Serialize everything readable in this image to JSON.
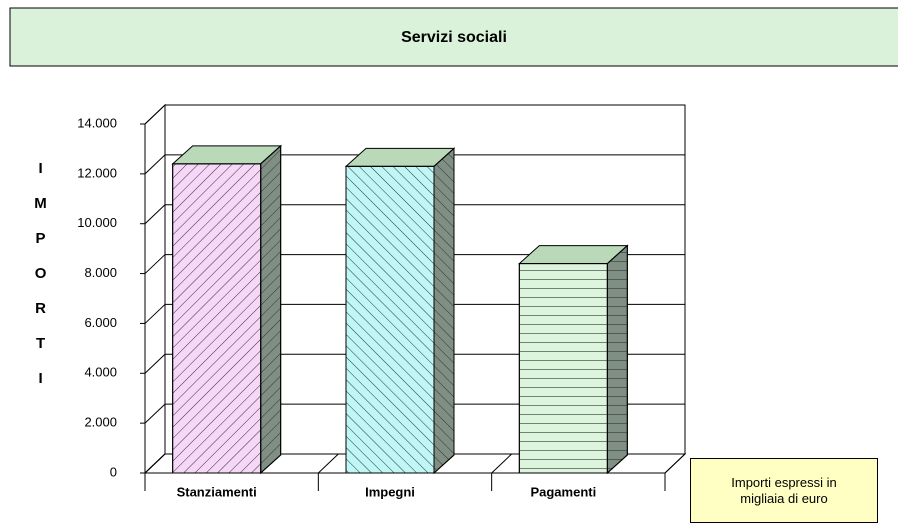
{
  "chart_data": {
    "type": "bar3d",
    "title": "Servizi sociali",
    "y_label": "IMPORTI",
    "categories": [
      "Stanziamenti",
      "Impegni",
      "Pagamenti"
    ],
    "values": [
      12400,
      12300,
      8400
    ],
    "colors": [
      "#f7d7f7",
      "#bff7f7",
      "#dcf5dc"
    ],
    "ylim": [
      0,
      14000
    ],
    "yticks": [
      0,
      {
        "value": 2000,
        "label": "2.000"
      },
      {
        "value": 4000,
        "label": "4.000"
      },
      {
        "value": 6000,
        "label": "6.000"
      },
      {
        "value": 8000,
        "label": "8.000"
      },
      {
        "value": 10000,
        "label": "10.000"
      },
      {
        "value": 12000,
        "label": "12.000"
      },
      {
        "value": 14000,
        "label": "14.000"
      }
    ],
    "grid": true,
    "annotation": "Importi espressi in migliaia di euro"
  }
}
